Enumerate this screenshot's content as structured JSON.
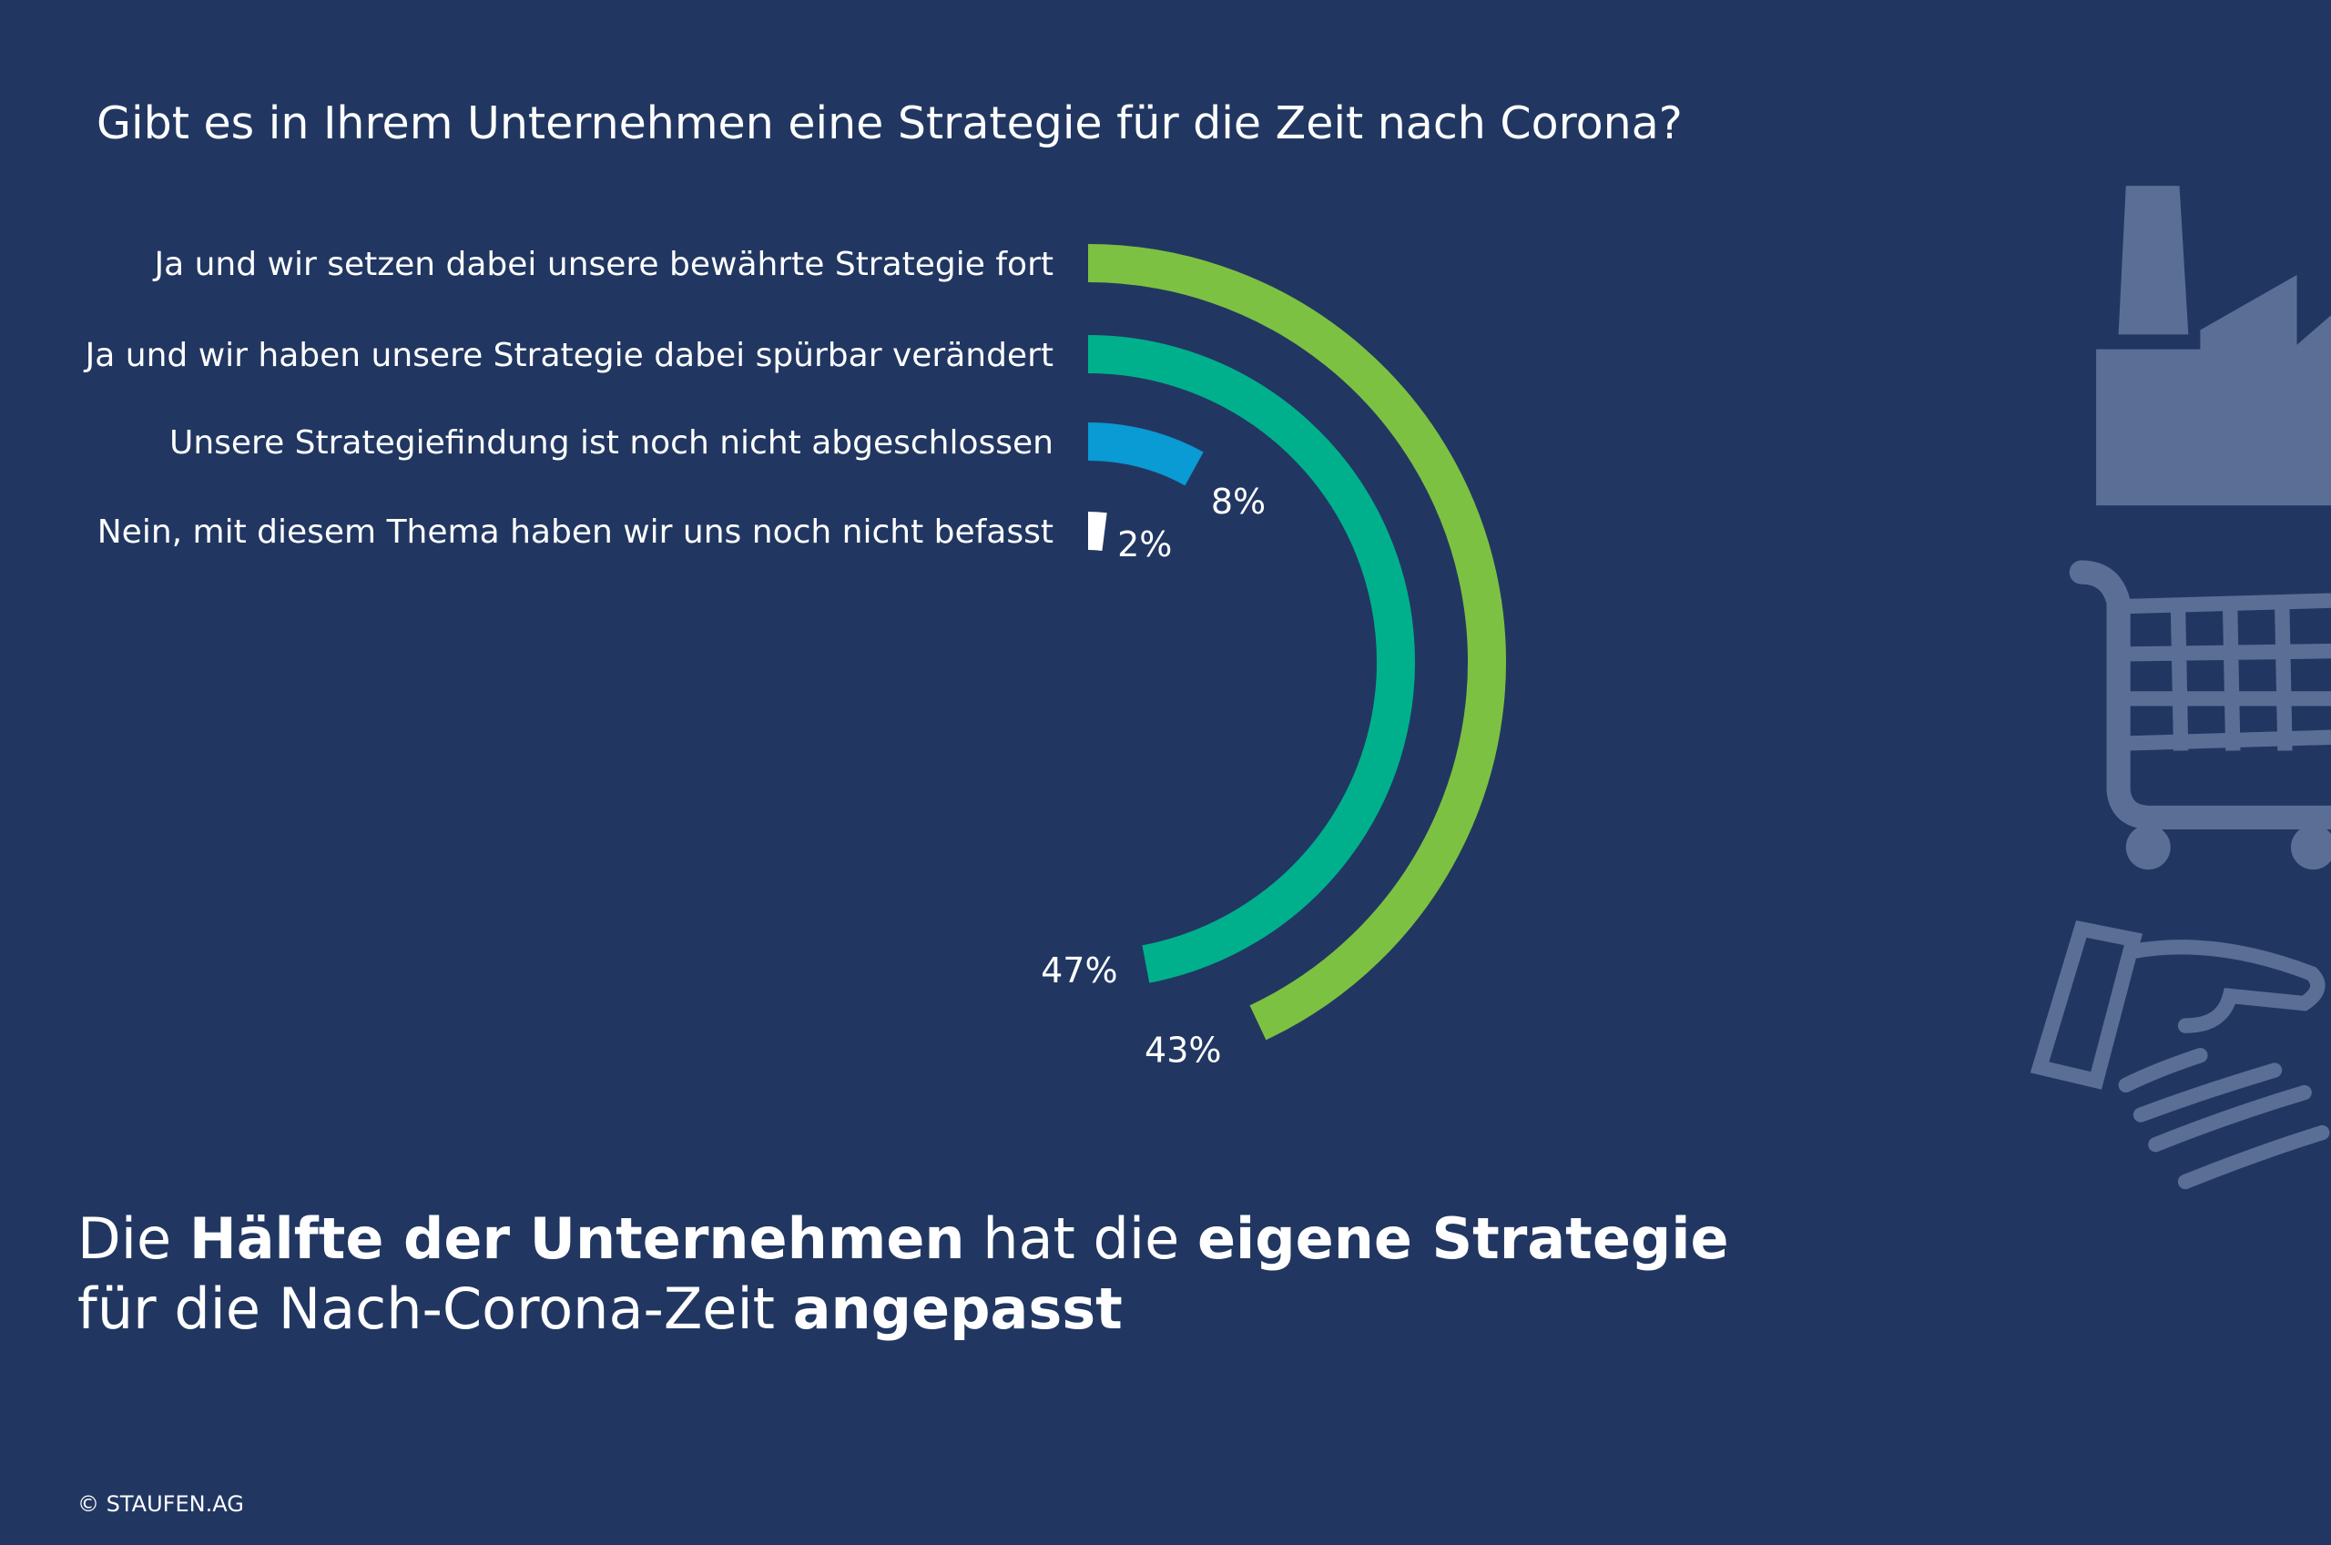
{
  "chart_data": {
    "type": "radial",
    "title": "Gibt es in Ihrem Unternehmen eine Strategie für die Zeit nach Corona?",
    "categories": [
      "Ja und wir setzen dabei unsere bewährte Strategie fort",
      "Ja und wir haben unsere Strategie dabei spürbar verändert",
      "Unsere Strategiefindung ist noch nicht abgeschlossen",
      "Nein, mit diesem Thema haben wir uns noch nicht befasst"
    ],
    "values": [
      43,
      47,
      8,
      2
    ],
    "value_labels": [
      "43%",
      "47%",
      "8%",
      "2%"
    ],
    "colors": [
      "#7dc142",
      "#00b08c",
      "#0a9ad4",
      "#ffffff"
    ],
    "ylim": [
      0,
      100
    ],
    "headline": [
      [
        {
          "text": "Die ",
          "bold": false
        },
        {
          "text": "Hälfte der Unternehmen",
          "bold": true
        },
        {
          "text": " hat die ",
          "bold": false
        },
        {
          "text": "eigene Strategie",
          "bold": true
        }
      ],
      [
        {
          "text": "für die Nach-Corona-Zeit ",
          "bold": false
        },
        {
          "text": "angepasst",
          "bold": true
        }
      ]
    ],
    "footer": "© STAUFEN.AG"
  }
}
